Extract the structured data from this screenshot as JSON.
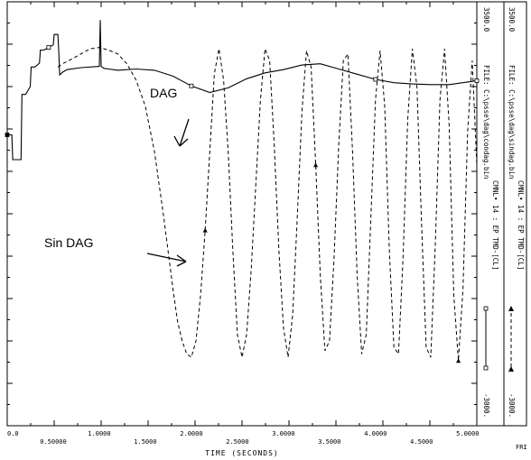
{
  "chart_data": {
    "type": "line",
    "title": "",
    "xlabel": "TIME (SECONDS)",
    "ylabel": "",
    "xlim": [
      0.0,
      5.1
    ],
    "ylim": [
      -3000.0,
      3500.0
    ],
    "x_ticks": [
      "0.0",
      "0.50000",
      "1.0000",
      "1.5000",
      "2.0000",
      "2.5000",
      "3.0000",
      "3.5000",
      "4.0000",
      "4.5000",
      "5.0000"
    ],
    "grid": false,
    "annotations": [
      {
        "text": "DAG",
        "target": "solid-series"
      },
      {
        "text": "Sin DAG",
        "target": "dashed-series"
      }
    ],
    "legend_panels": [
      {
        "name": "CMNL• 14 : EP TMD-[CL]",
        "file": "FILE: C:\\psse\\dag\\condag.bin",
        "ymax": "3500.0",
        "ymin": "-3000."
      },
      {
        "name": "CMNL• 14 : EP TMD-[CL]",
        "file": "FILE: C:\\psse\\dag\\sindag.bin",
        "ymax": "3500.0",
        "ymin": "-3000."
      }
    ],
    "footer_text": "FRI",
    "series": [
      {
        "name": "DAG",
        "style": "solid",
        "x": [
          0.0,
          0.05,
          0.06,
          0.1,
          0.15,
          0.16,
          0.2,
          0.25,
          0.26,
          0.3,
          0.35,
          0.36,
          0.4,
          0.45,
          0.5,
          0.51,
          0.55,
          0.56,
          0.57,
          0.6,
          0.65,
          0.8,
          1.0,
          1.01,
          1.02,
          1.05,
          1.1,
          1.2,
          1.4,
          1.6,
          1.8,
          2.0,
          2.2,
          2.4,
          2.6,
          2.8,
          3.0,
          3.2,
          3.4,
          3.6,
          3.8,
          4.0,
          4.2,
          4.4,
          4.6,
          4.8,
          5.0,
          5.1
        ],
        "y": [
          1460,
          1460,
          1080,
          1080,
          1080,
          2080,
          2080,
          2200,
          2500,
          2500,
          2560,
          2760,
          2760,
          2800,
          2840,
          3000,
          3000,
          2730,
          2380,
          2420,
          2460,
          2490,
          2510,
          3220,
          2510,
          2480,
          2470,
          2450,
          2470,
          2450,
          2360,
          2210,
          2110,
          2180,
          2320,
          2410,
          2460,
          2530,
          2550,
          2470,
          2390,
          2310,
          2260,
          2240,
          2230,
          2230,
          2270,
          2290
        ]
      },
      {
        "name": "Sin DAG",
        "style": "dashed",
        "x": [
          0.55,
          0.6,
          0.7,
          0.8,
          0.9,
          1.0,
          1.1,
          1.2,
          1.3,
          1.4,
          1.5,
          1.6,
          1.7,
          1.8,
          1.85,
          1.9,
          1.95,
          2.0,
          2.05,
          2.1,
          2.15,
          2.2,
          2.25,
          2.3,
          2.35,
          2.4,
          2.45,
          2.5,
          2.55,
          2.6,
          2.65,
          2.7,
          2.75,
          2.8,
          2.85,
          2.9,
          2.95,
          3.0,
          3.05,
          3.1,
          3.15,
          3.2,
          3.25,
          3.3,
          3.35,
          3.4,
          3.45,
          3.5,
          3.55,
          3.6,
          3.65,
          3.7,
          3.75,
          3.8,
          3.85,
          3.9,
          3.95,
          4.0,
          4.05,
          4.1,
          4.15,
          4.2,
          4.25,
          4.3,
          4.35,
          4.4,
          4.45,
          4.5,
          4.55,
          4.6,
          4.65,
          4.7,
          4.75,
          4.8,
          4.85,
          4.9,
          4.95,
          5.0,
          5.05,
          5.1
        ],
        "y": [
          2500,
          2550,
          2620,
          2700,
          2780,
          2800,
          2760,
          2700,
          2550,
          2300,
          1900,
          1200,
          200,
          -900,
          -1400,
          -1700,
          -1900,
          -1950,
          -1700,
          -1000,
          0,
          1200,
          2400,
          2780,
          2300,
          1200,
          -300,
          -1600,
          -1950,
          -1600,
          -600,
          700,
          2000,
          2780,
          2600,
          1300,
          -300,
          -1500,
          -1950,
          -1300,
          200,
          1800,
          2750,
          2500,
          1000,
          -700,
          -1850,
          -1700,
          -400,
          1300,
          2600,
          2700,
          1200,
          -700,
          -1900,
          -1600,
          200,
          2000,
          2750,
          1900,
          -300,
          -1800,
          -1900,
          -400,
          1700,
          2780,
          2200,
          100,
          -1800,
          -1950,
          -200,
          2000,
          2780,
          1600,
          -1000,
          -2000,
          -900,
          1500,
          2600,
          1000
        ]
      }
    ]
  }
}
